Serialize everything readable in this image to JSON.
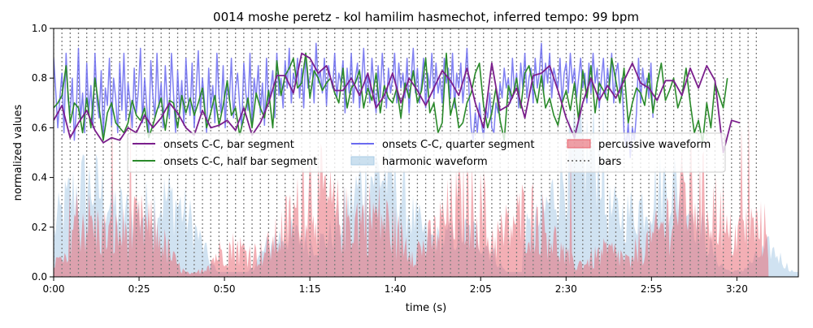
{
  "chart_data": {
    "type": "line",
    "title": "0014 moshe peretz - kol hamilim hasmechot, inferred tempo: 99 bpm",
    "xlabel": "time (s)",
    "ylabel": "normalized values",
    "xlim": [
      0,
      218
    ],
    "ylim": [
      0.0,
      1.0
    ],
    "grid": false,
    "legend_position": "center",
    "x_ticks": [
      {
        "value": 0,
        "label": "0:00"
      },
      {
        "value": 25,
        "label": "0:25"
      },
      {
        "value": 50,
        "label": "0:50"
      },
      {
        "value": 75,
        "label": "1:15"
      },
      {
        "value": 100,
        "label": "1:40"
      },
      {
        "value": 125,
        "label": "2:05"
      },
      {
        "value": 150,
        "label": "2:30"
      },
      {
        "value": 175,
        "label": "2:55"
      },
      {
        "value": 200,
        "label": "3:20"
      }
    ],
    "y_ticks": [
      {
        "value": 0.0,
        "label": "0.0"
      },
      {
        "value": 0.2,
        "label": "0.2"
      },
      {
        "value": 0.4,
        "label": "0.4"
      },
      {
        "value": 0.6,
        "label": "0.6"
      },
      {
        "value": 0.8,
        "label": "0.8"
      },
      {
        "value": 1.0,
        "label": "1.0"
      }
    ],
    "bars_lines": {
      "name": "bars",
      "color": "#7f7f7f",
      "start": 0,
      "end": 206,
      "step": 2.42
    },
    "series": [
      {
        "name": "onsets C-C, bar segment",
        "kind": "line",
        "color": "#7b1f8c",
        "start": 0,
        "step": 2.42,
        "values": [
          0.63,
          0.69,
          0.56,
          0.62,
          0.67,
          0.59,
          0.54,
          0.56,
          0.55,
          0.6,
          0.58,
          0.65,
          0.6,
          0.64,
          0.7,
          0.66,
          0.6,
          0.57,
          0.67,
          0.6,
          0.61,
          0.63,
          0.59,
          0.68,
          0.57,
          0.62,
          0.7,
          0.81,
          0.81,
          0.74,
          0.9,
          0.88,
          0.82,
          0.85,
          0.75,
          0.75,
          0.8,
          0.73,
          0.82,
          0.68,
          0.73,
          0.82,
          0.7,
          0.8,
          0.75,
          0.69,
          0.76,
          0.83,
          0.79,
          0.73,
          0.84,
          0.7,
          0.6,
          0.86,
          0.67,
          0.69,
          0.76,
          0.64,
          0.81,
          0.82,
          0.85,
          0.75,
          0.64,
          0.56,
          0.7,
          0.8,
          0.71,
          0.77,
          0.72,
          0.79,
          0.86,
          0.78,
          0.76,
          0.71,
          0.79,
          0.79,
          0.73,
          0.84,
          0.76,
          0.85,
          0.79,
          0.5,
          0.63,
          0.62
        ]
      },
      {
        "name": "onsets C-C, half bar segment",
        "kind": "line",
        "color": "#2a8a2a",
        "start": 0,
        "step": 1.21,
        "values": [
          0.68,
          0.7,
          0.73,
          0.85,
          0.62,
          0.7,
          0.68,
          0.58,
          0.72,
          0.6,
          0.8,
          0.68,
          0.55,
          0.66,
          0.7,
          0.62,
          0.6,
          0.58,
          0.62,
          0.71,
          0.65,
          0.63,
          0.68,
          0.56,
          0.61,
          0.67,
          0.72,
          0.59,
          0.71,
          0.7,
          0.6,
          0.73,
          0.66,
          0.72,
          0.65,
          0.7,
          0.76,
          0.6,
          0.66,
          0.73,
          0.61,
          0.69,
          0.79,
          0.65,
          0.68,
          0.57,
          0.64,
          0.72,
          0.6,
          0.74,
          0.68,
          0.64,
          0.75,
          0.6,
          0.87,
          0.73,
          0.81,
          0.84,
          0.88,
          0.76,
          0.78,
          0.9,
          0.72,
          0.83,
          0.8,
          0.75,
          0.78,
          0.8,
          0.74,
          0.7,
          0.84,
          0.68,
          0.76,
          0.78,
          0.83,
          0.68,
          0.76,
          0.71,
          0.82,
          0.66,
          0.77,
          0.72,
          0.7,
          0.76,
          0.64,
          0.78,
          0.72,
          0.83,
          0.7,
          0.75,
          0.88,
          0.66,
          0.7,
          0.58,
          0.62,
          0.9,
          0.65,
          0.72,
          0.6,
          0.62,
          0.7,
          0.74,
          0.82,
          0.86,
          0.69,
          0.6,
          0.66,
          0.76,
          0.63,
          0.55,
          0.77,
          0.72,
          0.8,
          0.68,
          0.82,
          0.85,
          0.77,
          0.7,
          0.81,
          0.68,
          0.72,
          0.65,
          0.61,
          0.7,
          0.75,
          0.67,
          0.78,
          0.63,
          0.83,
          0.72,
          0.85,
          0.66,
          0.78,
          0.75,
          0.71,
          0.88,
          0.79,
          0.7,
          0.84,
          0.62,
          0.7,
          0.76,
          0.74,
          0.69,
          0.82,
          0.66,
          0.78,
          0.86,
          0.71,
          0.75,
          0.8,
          0.68,
          0.73,
          0.84,
          0.7,
          0.58,
          0.63,
          0.54,
          0.7,
          0.6,
          0.78,
          0.73,
          0.68,
          0.8
        ]
      },
      {
        "name": "onsets C-C, quarter segment",
        "kind": "line",
        "color": "#6b6bf0",
        "start": 0,
        "step": 0.605,
        "values": [
          0.88,
          0.75,
          0.6,
          0.72,
          0.82,
          0.58,
          0.9,
          0.71,
          0.66,
          0.8,
          0.55,
          0.68,
          0.92,
          0.63,
          0.74,
          0.58,
          0.86,
          0.66,
          0.77,
          0.6,
          0.9,
          0.7,
          0.64,
          0.83,
          0.57,
          0.76,
          0.69,
          0.88,
          0.61,
          0.8,
          0.72,
          0.58,
          0.86,
          0.67,
          0.9,
          0.63,
          0.78,
          0.7,
          0.6,
          0.84,
          0.66,
          0.75,
          0.92,
          0.62,
          0.8,
          0.69,
          0.57,
          0.87,
          0.73,
          0.64,
          0.9,
          0.68,
          0.78,
          0.6,
          0.85,
          0.7,
          0.64,
          0.9,
          0.74,
          0.58,
          0.83,
          0.67,
          0.79,
          0.61,
          0.88,
          0.72,
          0.65,
          0.86,
          0.6,
          0.76,
          0.91,
          0.66,
          0.8,
          0.7,
          0.58,
          0.84,
          0.68,
          0.77,
          0.62,
          0.9,
          0.73,
          0.66,
          0.85,
          0.6,
          0.79,
          0.71,
          0.88,
          0.64,
          0.76,
          0.82,
          0.69,
          0.6,
          0.86,
          0.74,
          0.67,
          0.9,
          0.62,
          0.8,
          0.72,
          0.85,
          0.66,
          0.78,
          0.61,
          0.88,
          0.7,
          0.75,
          0.83,
          0.64,
          0.9,
          0.73,
          0.8,
          0.68,
          0.87,
          0.76,
          0.92,
          0.7,
          0.82,
          0.78,
          0.88,
          0.72,
          0.84,
          0.68,
          0.9,
          0.76,
          0.8,
          0.86,
          0.7,
          0.94,
          0.78,
          0.83,
          0.74,
          0.88,
          0.69,
          0.85,
          0.8,
          0.76,
          0.9,
          0.72,
          0.82,
          0.78,
          0.87,
          0.66,
          0.84,
          0.74,
          0.9,
          0.7,
          0.8,
          0.86,
          0.68,
          0.78,
          0.92,
          0.74,
          0.82,
          0.7,
          0.88,
          0.76,
          0.66,
          0.85,
          0.72,
          0.9,
          0.78,
          0.68,
          0.84,
          0.74,
          0.8,
          0.9,
          0.7,
          0.86,
          0.76,
          0.82,
          0.72,
          0.88,
          0.66,
          0.8,
          0.92,
          0.74,
          0.84,
          0.7,
          0.78,
          0.88,
          0.68,
          0.82,
          0.76,
          0.9,
          0.72,
          0.86,
          0.74,
          0.8,
          0.7,
          0.88,
          0.78,
          0.84,
          0.72,
          0.9,
          0.68,
          0.82,
          0.76,
          0.86,
          0.7,
          0.8,
          0.92,
          0.74,
          0.6,
          0.55,
          0.66,
          0.58,
          0.7,
          0.62,
          0.56,
          0.68,
          0.64,
          0.74,
          0.6,
          0.58,
          0.7,
          0.66,
          0.78,
          0.72,
          0.84,
          0.76,
          0.8,
          0.7,
          0.88,
          0.74,
          0.82,
          0.68,
          0.86,
          0.76,
          0.9,
          0.72,
          0.8,
          0.84,
          0.7,
          0.88,
          0.76,
          0.82,
          0.94,
          0.74,
          0.86,
          0.78,
          0.9,
          0.72,
          0.84,
          0.8,
          0.76,
          0.88,
          0.7,
          0.82,
          0.86,
          0.74,
          0.9,
          0.78,
          0.84,
          0.72,
          0.8,
          0.88,
          0.76,
          0.82,
          0.7,
          0.86,
          0.74,
          0.9,
          0.78,
          0.84,
          0.68,
          0.8,
          0.88,
          0.72,
          0.84,
          0.76,
          0.9,
          0.7,
          0.82,
          0.86,
          0.74,
          0.8,
          0.58,
          0.52,
          0.62,
          0.48,
          0.6,
          0.55,
          0.66,
          0.88,
          0.7,
          0.84,
          0.76,
          0.8,
          0.72,
          0.86,
          0.64
        ]
      },
      {
        "name": "harmonic waveform",
        "kind": "area",
        "color": "#a9cbe5"
      },
      {
        "name": "percussive waveform",
        "kind": "area",
        "color": "#e8606b"
      },
      {
        "name": "bars",
        "kind": "vlines",
        "color": "#7f7f7f"
      }
    ]
  }
}
